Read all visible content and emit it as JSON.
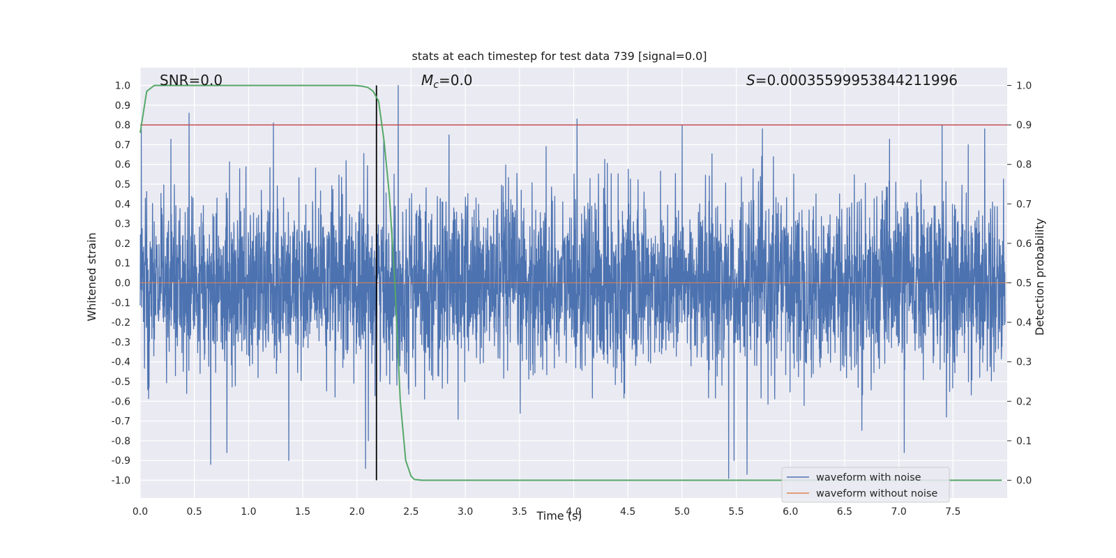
{
  "chart_data": {
    "type": "line",
    "title": "stats at each timestep for test data 739 [signal=0.0]",
    "xlabel": "Time (s)",
    "ylabel": "Whitened strain",
    "y2label": "Detection probability",
    "xlim": [
      0.0,
      8.0
    ],
    "ylim": [
      -1.09,
      1.09
    ],
    "y2lim": [
      -0.045,
      1.045
    ],
    "xticks": [
      "0.0",
      "0.5",
      "1.0",
      "1.5",
      "2.0",
      "2.5",
      "3.0",
      "3.5",
      "4.0",
      "4.5",
      "5.0",
      "5.5",
      "6.0",
      "6.5",
      "7.0",
      "7.5"
    ],
    "yticks": [
      "1.0",
      "0.9",
      "0.8",
      "0.7",
      "0.6",
      "0.5",
      "0.4",
      "0.3",
      "0.2",
      "0.1",
      "0.0",
      "-0.1",
      "-0.2",
      "-0.3",
      "-0.4",
      "-0.5",
      "-0.6",
      "-0.7",
      "-0.8",
      "-0.9",
      "-1.0"
    ],
    "y2ticks": [
      "1.0",
      "0.9",
      "0.8",
      "0.7",
      "0.6",
      "0.5",
      "0.4",
      "0.3",
      "0.2",
      "0.1",
      "0.0"
    ],
    "annotations": {
      "snr": "SNR=0.0",
      "mc_symbol": "M",
      "mc_sub": "c",
      "mc_value": "=0.0",
      "s_symbol": "S",
      "s_value": "=0.00035599953844211996"
    },
    "threshold": {
      "value": 0.9,
      "axis": "right",
      "color": "#c44e52"
    },
    "vertical_marker": {
      "x": 2.18,
      "color": "#000000"
    },
    "series": [
      {
        "name": "waveform with noise",
        "color": "#4c72b0",
        "axis": "left",
        "description": "noise series",
        "peaks": [
          {
            "x": 0.01,
            "y": 0.78
          },
          {
            "x": 0.45,
            "y": 0.86
          },
          {
            "x": 1.23,
            "y": 0.81
          },
          {
            "x": 2.38,
            "y": 1.0
          },
          {
            "x": 4.03,
            "y": 0.83
          },
          {
            "x": 5.0,
            "y": 0.8
          },
          {
            "x": 7.4,
            "y": 0.8
          },
          {
            "x": 0.65,
            "y": -0.92
          },
          {
            "x": 0.8,
            "y": -0.86
          },
          {
            "x": 1.37,
            "y": -0.9
          },
          {
            "x": 2.08,
            "y": -0.94
          },
          {
            "x": 5.43,
            "y": -0.99
          },
          {
            "x": 5.48,
            "y": -0.9
          },
          {
            "x": 5.6,
            "y": -0.97
          },
          {
            "x": 7.05,
            "y": -0.86
          }
        ]
      },
      {
        "name": "waveform without noise",
        "color": "#dd8452",
        "axis": "left",
        "x": [
          0.0,
          8.0
        ],
        "y": [
          0.0,
          0.0
        ]
      },
      {
        "name": "detection probability",
        "color": "#55a868",
        "axis": "right",
        "x": [
          0.0,
          0.06,
          0.13,
          0.25,
          0.5,
          1.0,
          1.5,
          1.98,
          2.05,
          2.1,
          2.15,
          2.2,
          2.25,
          2.3,
          2.35,
          2.4,
          2.45,
          2.5,
          2.53,
          2.6,
          3.0,
          4.0,
          5.0,
          6.0,
          7.0,
          7.95
        ],
        "y": [
          0.88,
          0.985,
          1.0,
          1.0,
          1.0,
          1.0,
          1.0,
          1.0,
          0.998,
          0.995,
          0.985,
          0.96,
          0.86,
          0.72,
          0.5,
          0.2,
          0.05,
          0.01,
          0.002,
          0.0,
          0.0,
          0.0,
          0.0,
          0.0,
          0.0,
          0.0
        ]
      }
    ],
    "legend": {
      "location": "lower-right",
      "entries": [
        {
          "label": "waveform with noise",
          "color": "#4c72b0"
        },
        {
          "label": "waveform without noise",
          "color": "#dd8452"
        }
      ]
    }
  }
}
